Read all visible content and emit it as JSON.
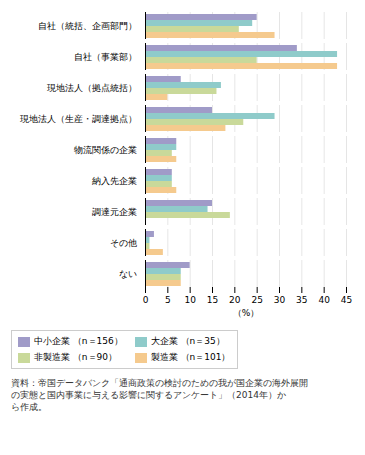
{
  "chart_data": {
    "type": "bar",
    "orientation": "horizontal",
    "categories": [
      "自社（統括、企画部門）",
      "自社（事業部）",
      "現地法人（拠点統括）",
      "現地法人（生産・調達拠点）",
      "物流関係の企業",
      "納入先企業",
      "調達元企業",
      "その他",
      "ない"
    ],
    "series": [
      {
        "name": "中小企業 （n＝156）",
        "color": "#a09bc8",
        "values": [
          25,
          34,
          8,
          15,
          7,
          6,
          15,
          2,
          10
        ]
      },
      {
        "name": "大企業 （n＝35）",
        "color": "#8fcbca",
        "values": [
          24,
          43,
          17,
          29,
          7,
          6,
          14,
          1,
          8
        ]
      },
      {
        "name": "非製造業 （n＝90）",
        "color": "#c9d99a",
        "values": [
          21,
          25,
          16,
          22,
          6,
          6,
          19,
          1,
          8
        ]
      },
      {
        "name": "製造業 （n＝101）",
        "color": "#f5ca8e",
        "values": [
          29,
          43,
          5,
          18,
          7,
          7,
          0,
          4,
          8
        ]
      }
    ],
    "xlabel": "（%）",
    "xlim": [
      0,
      45
    ],
    "xticks": [
      0,
      5,
      10,
      15,
      20,
      25,
      30,
      35,
      40,
      45
    ],
    "grid": true,
    "legend": "bottom",
    "annotations": [
      "資料：帝国データバンク「通商政策の検討のための我が国企業の海外展開\nの実態と国内事業に与える影響に関するアンケート」（2014年）か\nら作成。"
    ]
  }
}
